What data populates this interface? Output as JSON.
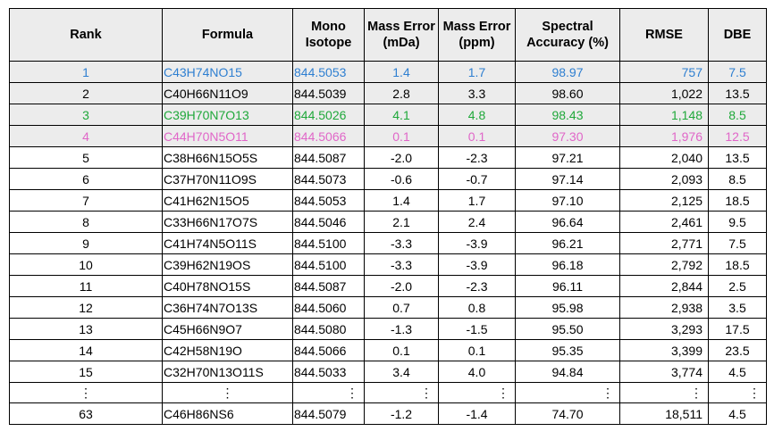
{
  "table": {
    "headers": {
      "rank": "Rank",
      "formula": "Formula",
      "mono_line1": "Mono",
      "mono_line2": "Isotope",
      "mda_line1": "Mass Error",
      "mda_line2": "(mDa)",
      "ppm_line1": "Mass Error",
      "ppm_line2": "(ppm)",
      "spec_line1": "Spectral",
      "spec_line2": "Accuracy (%)",
      "rmse": "RMSE",
      "dbe": "DBE"
    },
    "rows": [
      {
        "rank": "1",
        "formula": "C43H74NO15",
        "mono": "844.5053",
        "mda": "1.4",
        "ppm": "1.7",
        "spec": "98.97",
        "rmse": "757",
        "dbe": "7.5",
        "color": "#2e7fd1",
        "shaded": true
      },
      {
        "rank": "2",
        "formula": "C40H66N11O9",
        "mono": "844.5039",
        "mda": "2.8",
        "ppm": "3.3",
        "spec": "98.60",
        "rmse": "1,022",
        "dbe": "13.5",
        "color": "#000000",
        "shaded": true
      },
      {
        "rank": "3",
        "formula": "C39H70N7O13",
        "mono": "844.5026",
        "mda": "4.1",
        "ppm": "4.8",
        "spec": "98.43",
        "rmse": "1,148",
        "dbe": "8.5",
        "color": "#1fa83a",
        "shaded": true
      },
      {
        "rank": "4",
        "formula": "C44H70N5O11",
        "mono": "844.5066",
        "mda": "0.1",
        "ppm": "0.1",
        "spec": "97.30",
        "rmse": "1,976",
        "dbe": "12.5",
        "color": "#e066c8",
        "shaded": true
      },
      {
        "rank": "5",
        "formula": "C38H66N15O5S",
        "mono": "844.5087",
        "mda": "-2.0",
        "ppm": "-2.3",
        "spec": "97.21",
        "rmse": "2,040",
        "dbe": "13.5",
        "color": "#000000",
        "shaded": false
      },
      {
        "rank": "6",
        "formula": "C37H70N11O9S",
        "mono": "844.5073",
        "mda": "-0.6",
        "ppm": "-0.7",
        "spec": "97.14",
        "rmse": "2,093",
        "dbe": "8.5",
        "color": "#000000",
        "shaded": false
      },
      {
        "rank": "7",
        "formula": "C41H62N15O5",
        "mono": "844.5053",
        "mda": "1.4",
        "ppm": "1.7",
        "spec": "97.10",
        "rmse": "2,125",
        "dbe": "18.5",
        "color": "#000000",
        "shaded": false
      },
      {
        "rank": "8",
        "formula": "C33H66N17O7S",
        "mono": "844.5046",
        "mda": "2.1",
        "ppm": "2.4",
        "spec": "96.64",
        "rmse": "2,461",
        "dbe": "9.5",
        "color": "#000000",
        "shaded": false
      },
      {
        "rank": "9",
        "formula": "C41H74N5O11S",
        "mono": "844.5100",
        "mda": "-3.3",
        "ppm": "-3.9",
        "spec": "96.21",
        "rmse": "2,771",
        "dbe": "7.5",
        "color": "#000000",
        "shaded": false
      },
      {
        "rank": "10",
        "formula": "C39H62N19OS",
        "mono": "844.5100",
        "mda": "-3.3",
        "ppm": "-3.9",
        "spec": "96.18",
        "rmse": "2,792",
        "dbe": "18.5",
        "color": "#000000",
        "shaded": false
      },
      {
        "rank": "11",
        "formula": "C40H78NO15S",
        "mono": "844.5087",
        "mda": "-2.0",
        "ppm": "-2.3",
        "spec": "96.11",
        "rmse": "2,844",
        "dbe": "2.5",
        "color": "#000000",
        "shaded": false
      },
      {
        "rank": "12",
        "formula": "C36H74N7O13S",
        "mono": "844.5060",
        "mda": "0.7",
        "ppm": "0.8",
        "spec": "95.98",
        "rmse": "2,938",
        "dbe": "3.5",
        "color": "#000000",
        "shaded": false
      },
      {
        "rank": "13",
        "formula": "C45H66N9O7",
        "mono": "844.5080",
        "mda": "-1.3",
        "ppm": "-1.5",
        "spec": "95.50",
        "rmse": "3,293",
        "dbe": "17.5",
        "color": "#000000",
        "shaded": false
      },
      {
        "rank": "14",
        "formula": "C42H58N19O",
        "mono": "844.5066",
        "mda": "0.1",
        "ppm": "0.1",
        "spec": "95.35",
        "rmse": "3,399",
        "dbe": "23.5",
        "color": "#000000",
        "shaded": false
      },
      {
        "rank": "15",
        "formula": "C32H70N13O11S",
        "mono": "844.5033",
        "mda": "3.4",
        "ppm": "4.0",
        "spec": "94.84",
        "rmse": "3,774",
        "dbe": "4.5",
        "color": "#000000",
        "shaded": false
      },
      {
        "rank": "⋮",
        "formula": "⋮",
        "mono": "⋮",
        "mda": "⋮",
        "ppm": "⋮",
        "spec": "⋮",
        "rmse": "⋮",
        "dbe": "⋮",
        "color": "#000000",
        "shaded": false,
        "ellipsis": true
      },
      {
        "rank": "63",
        "formula": "C46H86NS6",
        "mono": "844.5079",
        "mda": "-1.2",
        "ppm": "-1.4",
        "spec": "74.70",
        "rmse": "18,511",
        "dbe": "4.5",
        "color": "#000000",
        "shaded": false
      }
    ]
  }
}
